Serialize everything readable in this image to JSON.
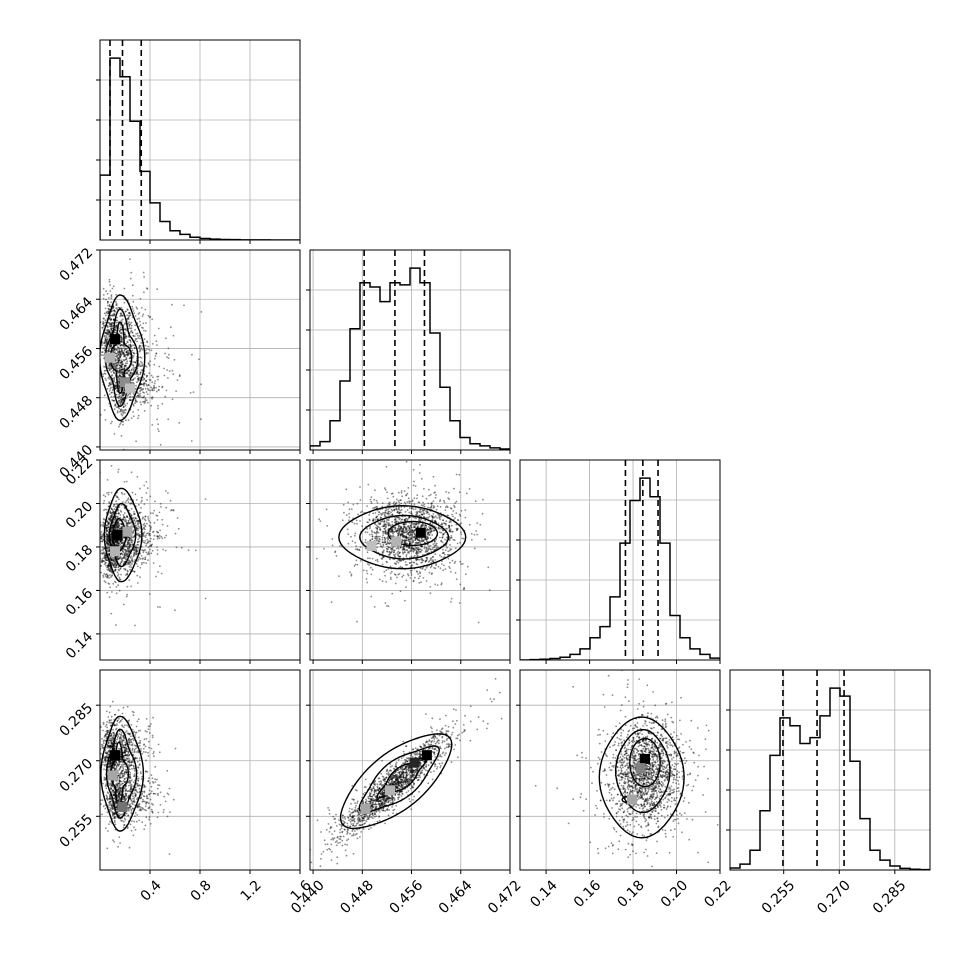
{
  "chart_data": {
    "type": "corner",
    "grid": true,
    "parameters": [
      {
        "range": [
          0.0,
          1.6
        ],
        "ticks": [
          0.4,
          0.8,
          1.2,
          1.6
        ],
        "tick_labels": [
          "0.4",
          "0.8",
          "1.2",
          "1.6"
        ],
        "quantiles": [
          0.08,
          0.18,
          0.33
        ],
        "histogram": {
          "bin_edges": [
            0.0,
            0.08,
            0.16,
            0.24,
            0.32,
            0.4,
            0.48,
            0.56,
            0.64,
            0.72,
            0.8,
            0.88,
            0.96,
            1.04,
            1.12,
            1.2,
            1.28,
            1.36,
            1.44,
            1.52,
            1.6
          ],
          "counts": [
            0.35,
            0.98,
            0.88,
            0.64,
            0.37,
            0.2,
            0.1,
            0.05,
            0.03,
            0.015,
            0.008,
            0.005,
            0.003,
            0.002,
            0.001,
            0.001,
            0.0005,
            0.0003,
            0.0002,
            0.0001
          ]
        }
      },
      {
        "range": [
          0.4395,
          0.472
        ],
        "ticks": [
          0.44,
          0.448,
          0.456,
          0.464,
          0.472
        ],
        "tick_labels": [
          "0.440",
          "0.448",
          "0.456",
          "0.464",
          "0.472"
        ],
        "quantiles": [
          0.4483,
          0.4533,
          0.4581
        ],
        "histogram": {
          "bin_edges": [
            0.4395,
            0.441125,
            0.44275,
            0.444375,
            0.446,
            0.447625,
            0.44925,
            0.450875,
            0.4525,
            0.454125,
            0.45575,
            0.457375,
            0.459,
            0.460625,
            0.46225,
            0.463875,
            0.4655,
            0.467125,
            0.46875,
            0.470375,
            0.472
          ],
          "counts": [
            0.02,
            0.04,
            0.14,
            0.33,
            0.58,
            0.8,
            0.78,
            0.71,
            0.8,
            0.79,
            0.87,
            0.8,
            0.56,
            0.3,
            0.14,
            0.06,
            0.03,
            0.02,
            0.01,
            0.005
          ]
        }
      },
      {
        "range": [
          0.128,
          0.22
        ],
        "ticks": [
          0.14,
          0.16,
          0.18,
          0.2,
          0.22
        ],
        "tick_labels": [
          "0.14",
          "0.16",
          "0.18",
          "0.20",
          "0.22"
        ],
        "quantiles": [
          0.1765,
          0.1845,
          0.1915
        ],
        "histogram": {
          "bin_edges": [
            0.128,
            0.1326,
            0.1372,
            0.1418,
            0.1464,
            0.151,
            0.1556,
            0.1602,
            0.1648,
            0.1694,
            0.174,
            0.1786,
            0.1832,
            0.1878,
            0.1924,
            0.197,
            0.2016,
            0.2062,
            0.2108,
            0.2154,
            0.22
          ],
          "counts": [
            0.0,
            0.002,
            0.004,
            0.008,
            0.015,
            0.03,
            0.06,
            0.12,
            0.18,
            0.34,
            0.63,
            0.86,
            0.98,
            0.88,
            0.63,
            0.24,
            0.12,
            0.06,
            0.03,
            0.01
          ]
        }
      },
      {
        "range": [
          0.2405,
          0.2945
        ],
        "ticks": [
          0.255,
          0.27,
          0.285
        ],
        "tick_labels": [
          "0.255",
          "0.270",
          "0.285"
        ],
        "quantiles": [
          0.2548,
          0.264,
          0.2713
        ],
        "histogram": {
          "bin_edges": [
            0.2405,
            0.2432,
            0.2459,
            0.2486,
            0.2513,
            0.254,
            0.2567,
            0.2594,
            0.2621,
            0.2648,
            0.2675,
            0.2702,
            0.2729,
            0.2756,
            0.2783,
            0.281,
            0.2837,
            0.2864,
            0.2891,
            0.2918,
            0.2945
          ],
          "counts": [
            0.01,
            0.03,
            0.1,
            0.3,
            0.58,
            0.77,
            0.73,
            0.64,
            0.67,
            0.78,
            0.92,
            0.88,
            0.55,
            0.26,
            0.1,
            0.05,
            0.02,
            0.008,
            0.004,
            0.002
          ]
        }
      }
    ],
    "pairs": [
      {
        "row": 1,
        "col": 0,
        "seed": 11,
        "sample_count": 1700,
        "modes": [
          {
            "mx": 0.12,
            "my": 0.4575,
            "sx": 0.07,
            "sy": 0.0033,
            "w": 0.55
          },
          {
            "mx": 0.2,
            "my": 0.4505,
            "sx": 0.08,
            "sy": 0.0028,
            "w": 0.45
          }
        ],
        "density_cells": [
          {
            "x": 0.12,
            "y": 0.4575,
            "level": 1.0
          },
          {
            "x": 0.2,
            "y": 0.4505,
            "level": 0.45
          },
          {
            "x": 0.08,
            "y": 0.4545,
            "level": 0.3
          },
          {
            "x": 0.24,
            "y": 0.4495,
            "level": 0.25
          }
        ],
        "contours": [
          {
            "cx": 0.16,
            "cy": 0.4545,
            "rx": 0.36,
            "ry": 0.0102,
            "pinch": 0.15
          },
          {
            "cx": 0.16,
            "cy": 0.4545,
            "rx": 0.26,
            "ry": 0.0079,
            "pinch": 0.3
          },
          {
            "cx": 0.16,
            "cy": 0.4545,
            "rx": 0.17,
            "ry": 0.0058,
            "pinch": 0.45
          }
        ]
      },
      {
        "row": 2,
        "col": 0,
        "seed": 23,
        "sample_count": 1700,
        "modes": [
          {
            "mx": 0.15,
            "my": 0.1855,
            "sx": 0.09,
            "sy": 0.0075,
            "w": 0.7
          },
          {
            "mx": 0.1,
            "my": 0.177,
            "sx": 0.06,
            "sy": 0.0075,
            "w": 0.3
          }
        ],
        "density_cells": [
          {
            "x": 0.14,
            "y": 0.1855,
            "level": 1.0
          },
          {
            "x": 0.22,
            "y": 0.187,
            "level": 0.35
          },
          {
            "x": 0.12,
            "y": 0.178,
            "level": 0.3
          }
        ],
        "contours": [
          {
            "cx": 0.17,
            "cy": 0.1855,
            "rx": 0.3,
            "ry": 0.0215,
            "pinch": 0.1
          },
          {
            "cx": 0.17,
            "cy": 0.1855,
            "rx": 0.21,
            "ry": 0.0145,
            "pinch": 0.15
          },
          {
            "cx": 0.15,
            "cy": 0.1855,
            "rx": 0.11,
            "ry": 0.0075,
            "pinch": 0.1
          }
        ]
      },
      {
        "row": 2,
        "col": 1,
        "seed": 37,
        "sample_count": 1700,
        "modes": [
          {
            "mx": 0.4555,
            "my": 0.1855,
            "sx": 0.0038,
            "sy": 0.0085,
            "w": 1.0
          }
        ],
        "density_cells": [
          {
            "x": 0.4575,
            "y": 0.1865,
            "level": 1.0
          },
          {
            "x": 0.4535,
            "y": 0.1825,
            "level": 0.3
          },
          {
            "x": 0.4495,
            "y": 0.1805,
            "level": 0.25
          }
        ],
        "contours": [
          {
            "cx": 0.4545,
            "cy": 0.1845,
            "rx": 0.0103,
            "ry": 0.0145,
            "pinch": 0.05
          },
          {
            "cx": 0.4548,
            "cy": 0.1845,
            "rx": 0.0072,
            "ry": 0.01,
            "pinch": 0.05
          },
          {
            "cx": 0.4562,
            "cy": 0.1862,
            "rx": 0.004,
            "ry": 0.0055,
            "pinch": 0.0
          }
        ]
      },
      {
        "row": 3,
        "col": 0,
        "seed": 41,
        "sample_count": 1700,
        "modes": [
          {
            "mx": 0.12,
            "my": 0.2715,
            "sx": 0.07,
            "sy": 0.0045,
            "w": 0.6
          },
          {
            "mx": 0.16,
            "my": 0.2595,
            "sx": 0.08,
            "sy": 0.0035,
            "w": 0.4
          }
        ],
        "density_cells": [
          {
            "x": 0.12,
            "y": 0.2715,
            "level": 1.0
          },
          {
            "x": 0.18,
            "y": 0.2575,
            "level": 0.55
          },
          {
            "x": 0.1,
            "y": 0.266,
            "level": 0.35
          }
        ],
        "contours": [
          {
            "cx": 0.16,
            "cy": 0.2665,
            "rx": 0.34,
            "ry": 0.0155,
            "pinch": 0.12
          },
          {
            "cx": 0.16,
            "cy": 0.2665,
            "rx": 0.24,
            "ry": 0.012,
            "pinch": 0.22
          },
          {
            "cx": 0.15,
            "cy": 0.2665,
            "rx": 0.14,
            "ry": 0.0085,
            "pinch": 0.38
          }
        ]
      },
      {
        "row": 3,
        "col": 1,
        "seed": 53,
        "sample_count": 1700,
        "modes": [
          {
            "mx": 0.4532,
            "my": 0.2635,
            "sx": 0.0042,
            "sy": 0.0065,
            "w": 1.0,
            "rho": 0.92
          }
        ],
        "density_cells": [
          {
            "x": 0.4585,
            "y": 0.2715,
            "level": 1.0
          },
          {
            "x": 0.4565,
            "y": 0.2695,
            "level": 0.85
          },
          {
            "x": 0.4525,
            "y": 0.262,
            "level": 0.3
          },
          {
            "x": 0.4485,
            "y": 0.257,
            "level": 0.35
          }
        ],
        "contours": [
          {
            "cx": 0.4535,
            "cy": 0.2645,
            "rx": 0.0112,
            "ry": 0.0051,
            "angle": -39,
            "pinch": 0.05
          },
          {
            "cx": 0.454,
            "cy": 0.265,
            "rx": 0.0082,
            "ry": 0.0034,
            "angle": -39,
            "pinch": 0.15
          },
          {
            "cx": 0.4545,
            "cy": 0.2655,
            "rx": 0.0052,
            "ry": 0.0018,
            "angle": -39,
            "pinch": 0.25
          }
        ]
      },
      {
        "row": 3,
        "col": 2,
        "seed": 67,
        "sample_count": 1700,
        "modes": [
          {
            "mx": 0.1855,
            "my": 0.2665,
            "sx": 0.0085,
            "sy": 0.007,
            "w": 1.0
          }
        ],
        "density_cells": [
          {
            "x": 0.1855,
            "y": 0.2705,
            "level": 1.0
          },
          {
            "x": 0.1835,
            "y": 0.268,
            "level": 0.5
          },
          {
            "x": 0.1795,
            "y": 0.2595,
            "level": 0.35
          }
        ],
        "contours": [
          {
            "cx": 0.184,
            "cy": 0.2655,
            "rx": 0.0195,
            "ry": 0.0163,
            "pinch": 0.05
          },
          {
            "cx": 0.1845,
            "cy": 0.2672,
            "rx": 0.0125,
            "ry": 0.0112,
            "pinch": 0.05
          },
          {
            "cx": 0.1855,
            "cy": 0.2695,
            "rx": 0.007,
            "ry": 0.0065,
            "pinch": 0.0
          },
          {
            "cx": 0.1775,
            "cy": 0.2595,
            "rx": 0.0025,
            "ry": 0.0008,
            "pinch": 0.0
          }
        ]
      }
    ]
  }
}
